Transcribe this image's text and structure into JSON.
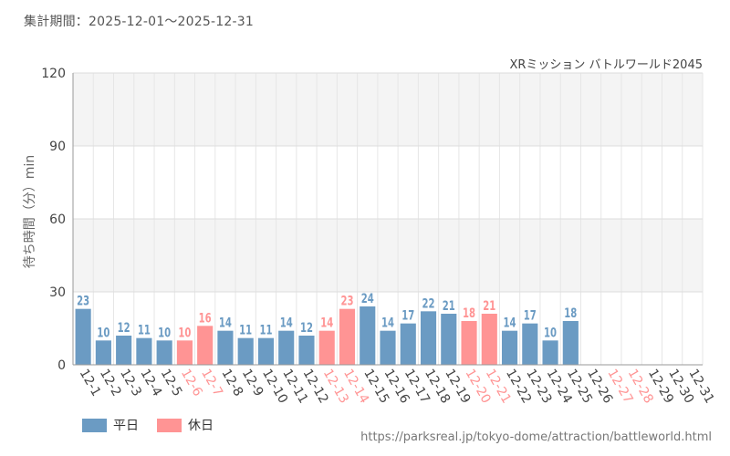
{
  "header": {
    "period": "集計期間：2025-12-01～2025-12-31"
  },
  "footer": {
    "source": "https://parksreal.jp/tokyo-dome/attraction/battleworld.html"
  },
  "legend": {
    "weekday_label": "平日",
    "holiday_label": "休日"
  },
  "colors": {
    "weekday": "#6b9bc3",
    "holiday": "#ff9494",
    "band": "#f4f4f4"
  },
  "chart_data": {
    "type": "bar",
    "title": "XRミッション バトルワールド2045",
    "ylabel": "待ち時間（分）min",
    "xlabel": "",
    "ylim": [
      0,
      120
    ],
    "yticks": [
      0,
      30,
      60,
      90,
      120
    ],
    "categories": [
      "12-1",
      "12-2",
      "12-3",
      "12-4",
      "12-5",
      "12-6",
      "12-7",
      "12-8",
      "12-9",
      "12-10",
      "12-11",
      "12-12",
      "12-13",
      "12-14",
      "12-15",
      "12-16",
      "12-17",
      "12-18",
      "12-19",
      "12-20",
      "12-21",
      "12-22",
      "12-23",
      "12-24",
      "12-25",
      "12-26",
      "12-27",
      "12-28",
      "12-29",
      "12-30",
      "12-31"
    ],
    "values": [
      23,
      10,
      12,
      11,
      10,
      10,
      16,
      14,
      11,
      11,
      14,
      12,
      14,
      23,
      24,
      14,
      17,
      22,
      21,
      18,
      21,
      14,
      17,
      10,
      18,
      null,
      null,
      null,
      null,
      null,
      null
    ],
    "day_type": [
      "weekday",
      "weekday",
      "weekday",
      "weekday",
      "weekday",
      "holiday",
      "holiday",
      "weekday",
      "weekday",
      "weekday",
      "weekday",
      "weekday",
      "holiday",
      "holiday",
      "weekday",
      "weekday",
      "weekday",
      "weekday",
      "weekday",
      "holiday",
      "holiday",
      "weekday",
      "weekday",
      "weekday",
      "weekday",
      "weekday",
      "holiday",
      "holiday",
      "weekday",
      "weekday",
      "weekday"
    ]
  }
}
